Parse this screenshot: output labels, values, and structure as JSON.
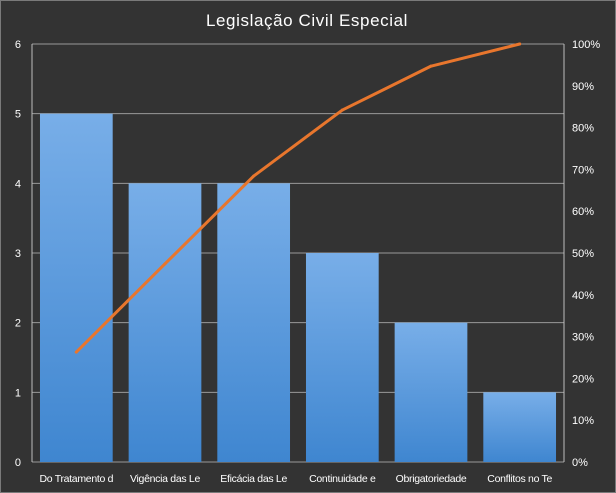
{
  "chart_data": {
    "type": "bar",
    "title": "Legislação  Civil  Especial",
    "categories": [
      "Do Tratamento d",
      "Vigência das Le",
      "Eficácia das Le",
      "Continuidade e",
      "Obrigatoriedade",
      "Conflitos no Te"
    ],
    "series": [
      {
        "type": "bar",
        "axis": "left",
        "values": [
          5,
          4,
          4,
          3,
          2,
          1
        ]
      },
      {
        "type": "line",
        "axis": "right",
        "values": [
          26.3,
          47.4,
          68.4,
          84.2,
          94.7,
          100
        ]
      }
    ],
    "y_left": {
      "range": [
        0,
        6
      ],
      "ticks": [
        "0",
        "1",
        "2",
        "3",
        "4",
        "5",
        "6"
      ]
    },
    "y_right": {
      "range": [
        0,
        100
      ],
      "ticks": [
        "0%",
        "10%",
        "20%",
        "30%",
        "40%",
        "50%",
        "60%",
        "70%",
        "80%",
        "90%",
        "100%"
      ]
    },
    "grid": true,
    "colors": {
      "bar_top": "#78aee8",
      "bar_bottom": "#3f86d0",
      "line": "#e8762d",
      "background": "#333333",
      "grid": "#9a9a9a"
    }
  }
}
